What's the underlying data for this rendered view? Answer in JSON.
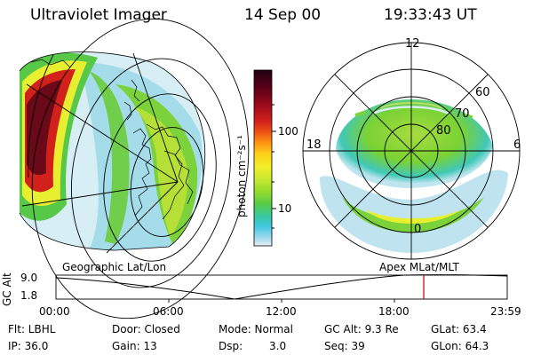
{
  "header": {
    "instrument": "Ultraviolet Imager",
    "date": "14 Sep 00",
    "time": "19:33:43 UT"
  },
  "colorbar": {
    "unit_label": "photon cm⁻²s⁻¹",
    "ticks": [
      "100",
      "10"
    ],
    "colors": [
      "#200010",
      "#5a0018",
      "#9c0a1a",
      "#d2201a",
      "#f05a14",
      "#ff9a12",
      "#ffd21c",
      "#f2ee28",
      "#c8e830",
      "#94dc2c",
      "#58cc44",
      "#38c8a0",
      "#40c8e0",
      "#9ad8ee",
      "#e6f0f6"
    ]
  },
  "left_map": {
    "caption": "Geographic Lat/Lon"
  },
  "right_map": {
    "caption": "Apex MLat/MLT",
    "mlt_labels": {
      "top": "12",
      "left": "18",
      "right": "6",
      "bottom": "0"
    },
    "lat_labels": [
      "60",
      "70",
      "80"
    ]
  },
  "altitude_plot": {
    "ylabel": "GC Alt",
    "yticks": [
      "9.0",
      "1.8"
    ],
    "xticks": [
      "00:00",
      "06:00",
      "12:00",
      "18:00",
      "23:59"
    ],
    "current_time_hours": 19.56,
    "marker_color": "#c00000"
  },
  "info": {
    "row1": [
      "Flt: LBHL",
      "Door: Closed",
      "Mode: Normal",
      "GC Alt: 9.3 Re",
      "GLat: 63.4"
    ],
    "row2": [
      "IP: 36.0",
      "Gain: 13",
      "Dsp:",
      "3.0",
      "Seq: 39",
      "GLon: 64.3"
    ]
  }
}
